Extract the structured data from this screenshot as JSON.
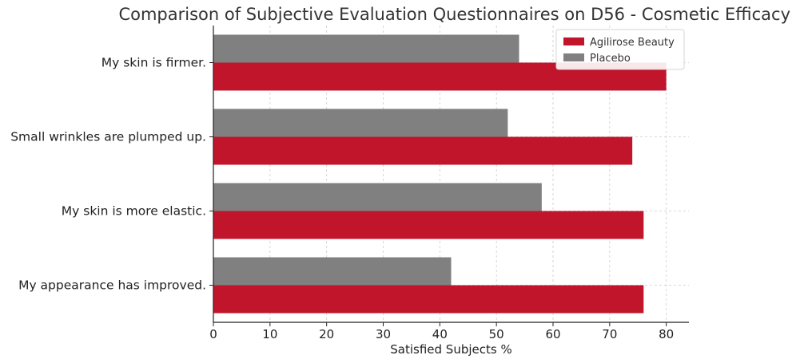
{
  "chart_data": {
    "type": "bar",
    "orientation": "horizontal",
    "title": "Comparison of Subjective Evaluation Questionnaires on D56 - Cosmetic Efficacy",
    "xlabel": "Satisfied Subjects %",
    "ylabel": "",
    "xlim": [
      0,
      84
    ],
    "xticks": [
      0,
      10,
      20,
      30,
      40,
      50,
      60,
      70,
      80
    ],
    "grid": true,
    "legend_position": "top-right",
    "categories": [
      "My skin is firmer.",
      "Small wrinkles are plumped up.",
      "My skin is more elastic.",
      "My appearance has improved."
    ],
    "series": [
      {
        "name": "Agilirose Beauty",
        "color": "#c0152b",
        "values": [
          80,
          74,
          76,
          76
        ]
      },
      {
        "name": "Placebo",
        "color": "#808080",
        "values": [
          54,
          52,
          58,
          42
        ]
      }
    ]
  }
}
